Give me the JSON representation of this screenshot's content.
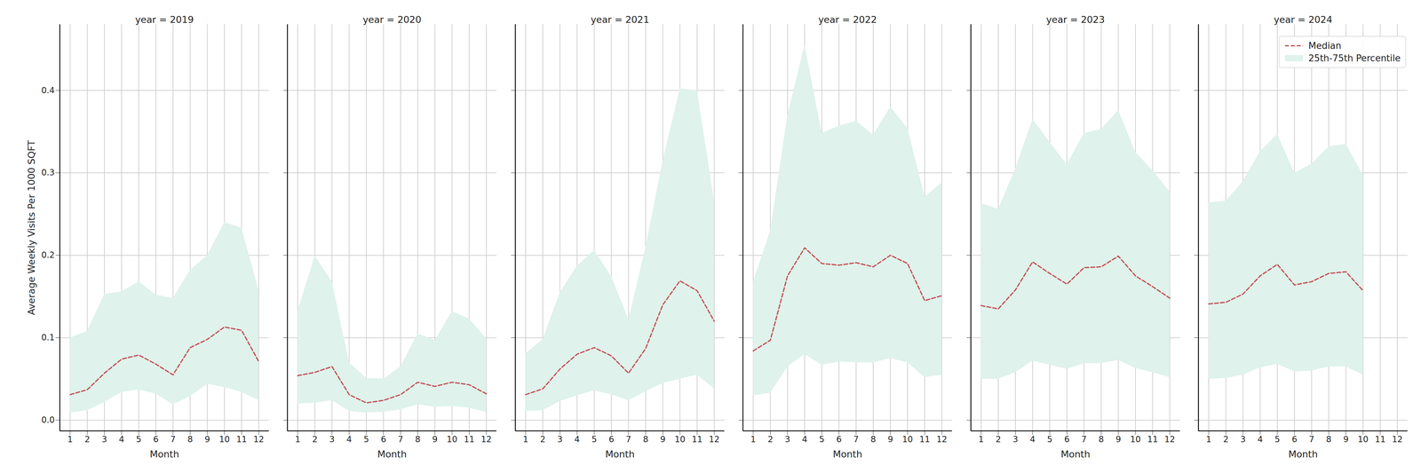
{
  "chart_data": {
    "type": "line",
    "xlabel": "Month",
    "ylabel": "Average Weekly Visits Per 1000 SQFT",
    "xlim": [
      0.4,
      12.6
    ],
    "xticks": [
      1,
      2,
      3,
      4,
      5,
      6,
      7,
      8,
      9,
      10,
      11,
      12
    ],
    "ylim": [
      -0.013,
      0.48
    ],
    "yticks": [
      {
        "value": 0,
        "label": "0.0"
      },
      {
        "value": 0.1,
        "label": "0.1"
      },
      {
        "value": 0.2,
        "label": "0.2"
      },
      {
        "value": 0.3,
        "label": "0.3"
      },
      {
        "value": 0.4,
        "label": "0.4"
      }
    ],
    "grid": true,
    "legend": "upper right",
    "panels": [
      {
        "title": "year = 2019",
        "x": [
          1,
          2,
          3,
          4,
          5,
          6,
          7,
          8,
          9,
          10,
          11,
          12
        ],
        "series": [
          {
            "name": "Median",
            "type": "line",
            "color": "#c44e52",
            "line_style": "dashed",
            "values": [
              0.031,
              0.037,
              0.057,
              0.074,
              0.079,
              0.068,
              0.055,
              0.088,
              0.098,
              0.113,
              0.109,
              0.071
            ]
          },
          {
            "name": "25th-75th Percentile",
            "type": "band",
            "color": "#dff2ec",
            "lower": [
              0.009,
              0.012,
              0.022,
              0.034,
              0.037,
              0.032,
              0.019,
              0.029,
              0.044,
              0.04,
              0.034,
              0.024
            ],
            "upper": [
              0.1,
              0.108,
              0.153,
              0.156,
              0.168,
              0.152,
              0.148,
              0.182,
              0.2,
              0.24,
              0.233,
              0.157
            ]
          }
        ]
      },
      {
        "title": "year = 2020",
        "x": [
          1,
          2,
          3,
          4,
          5,
          6,
          7,
          8,
          9,
          10,
          11,
          12
        ],
        "series": [
          {
            "name": "Median",
            "type": "line",
            "color": "#c44e52",
            "line_style": "dashed",
            "values": [
              0.054,
              0.058,
              0.065,
              0.031,
              0.021,
              0.024,
              0.031,
              0.046,
              0.041,
              0.046,
              0.043,
              0.032
            ]
          },
          {
            "name": "25th-75th Percentile",
            "type": "band",
            "color": "#dff2ec",
            "lower": [
              0.02,
              0.021,
              0.024,
              0.011,
              0.009,
              0.01,
              0.013,
              0.019,
              0.016,
              0.017,
              0.015,
              0.01
            ],
            "upper": [
              0.133,
              0.199,
              0.168,
              0.07,
              0.051,
              0.05,
              0.065,
              0.105,
              0.097,
              0.132,
              0.123,
              0.099
            ]
          }
        ]
      },
      {
        "title": "year = 2021",
        "x": [
          1,
          2,
          3,
          4,
          5,
          6,
          7,
          8,
          9,
          10,
          11,
          12
        ],
        "series": [
          {
            "name": "Median",
            "type": "line",
            "color": "#c44e52",
            "line_style": "dashed",
            "values": [
              0.031,
              0.038,
              0.062,
              0.08,
              0.088,
              0.078,
              0.057,
              0.087,
              0.14,
              0.169,
              0.157,
              0.12
            ]
          },
          {
            "name": "25th-75th Percentile",
            "type": "band",
            "color": "#dff2ec",
            "lower": [
              0.011,
              0.012,
              0.023,
              0.03,
              0.036,
              0.031,
              0.024,
              0.035,
              0.045,
              0.05,
              0.055,
              0.038
            ],
            "upper": [
              0.081,
              0.098,
              0.155,
              0.187,
              0.206,
              0.174,
              0.122,
              0.21,
              0.315,
              0.402,
              0.4,
              0.265
            ]
          }
        ]
      },
      {
        "title": "year = 2022",
        "x": [
          1,
          2,
          3,
          4,
          5,
          6,
          7,
          8,
          9,
          10,
          11,
          12
        ],
        "series": [
          {
            "name": "Median",
            "type": "line",
            "color": "#c44e52",
            "line_style": "dashed",
            "values": [
              0.084,
              0.097,
              0.175,
              0.209,
              0.19,
              0.188,
              0.191,
              0.186,
              0.2,
              0.19,
              0.145,
              0.151
            ]
          },
          {
            "name": "25th-75th Percentile",
            "type": "band",
            "color": "#dff2ec",
            "lower": [
              0.03,
              0.033,
              0.065,
              0.08,
              0.067,
              0.071,
              0.07,
              0.07,
              0.075,
              0.07,
              0.052,
              0.055
            ],
            "upper": [
              0.168,
              0.23,
              0.37,
              0.455,
              0.348,
              0.357,
              0.363,
              0.346,
              0.38,
              0.354,
              0.271,
              0.288
            ]
          }
        ]
      },
      {
        "title": "year = 2023",
        "x": [
          1,
          2,
          3,
          4,
          5,
          6,
          7,
          8,
          9,
          10,
          11,
          12
        ],
        "series": [
          {
            "name": "Median",
            "type": "line",
            "color": "#c44e52",
            "line_style": "dashed",
            "values": [
              0.139,
              0.135,
              0.158,
              0.192,
              0.178,
              0.165,
              0.185,
              0.186,
              0.199,
              0.175,
              0.162,
              0.148
            ]
          },
          {
            "name": "25th-75th Percentile",
            "type": "band",
            "color": "#dff2ec",
            "lower": [
              0.05,
              0.05,
              0.058,
              0.072,
              0.067,
              0.062,
              0.069,
              0.069,
              0.073,
              0.063,
              0.058,
              0.052
            ],
            "upper": [
              0.263,
              0.256,
              0.305,
              0.365,
              0.337,
              0.31,
              0.348,
              0.353,
              0.376,
              0.325,
              0.303,
              0.277
            ]
          }
        ]
      },
      {
        "title": "year = 2024",
        "x": [
          1,
          2,
          3,
          4,
          5,
          6,
          7,
          8,
          9,
          10
        ],
        "series": [
          {
            "name": "Median",
            "type": "line",
            "color": "#c44e52",
            "line_style": "dashed",
            "values": [
              0.141,
              0.143,
              0.153,
              0.175,
              0.189,
              0.164,
              0.168,
              0.178,
              0.18,
              0.157
            ]
          },
          {
            "name": "25th-75th Percentile",
            "type": "band",
            "color": "#dff2ec",
            "lower": [
              0.05,
              0.051,
              0.055,
              0.064,
              0.068,
              0.059,
              0.06,
              0.065,
              0.065,
              0.055
            ],
            "upper": [
              0.264,
              0.266,
              0.29,
              0.326,
              0.347,
              0.3,
              0.311,
              0.332,
              0.335,
              0.297
            ]
          }
        ]
      }
    ]
  }
}
